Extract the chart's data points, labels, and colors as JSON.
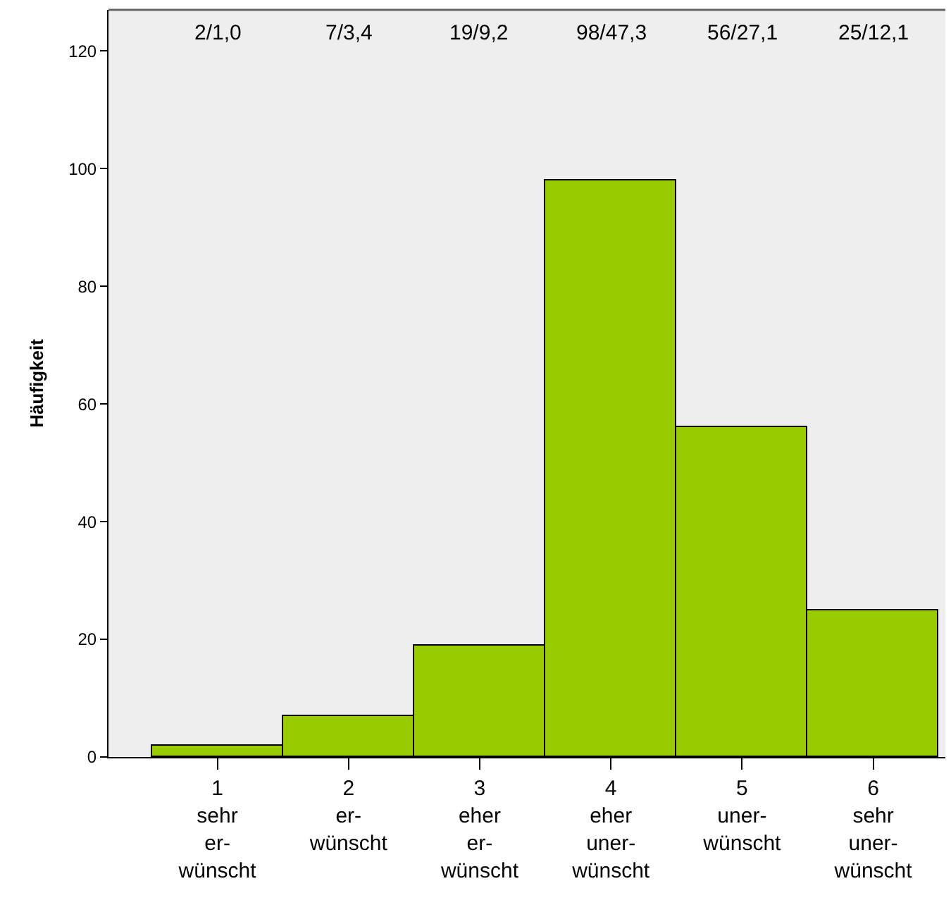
{
  "chart_data": {
    "type": "bar",
    "ylabel": "Häufigkeit",
    "categories": [
      "1\nsehr\ner-\nwünscht",
      "2\ner-\nwünscht",
      "3\neher\ner-\nwünscht",
      "4\neher\nuner-\nwünscht",
      "5\nuner-\nwünscht",
      "6\nsehr\nuner-\nwünscht"
    ],
    "values": [
      2,
      7,
      19,
      98,
      56,
      25
    ],
    "annotations": [
      "2/1,0",
      "7/3,4",
      "19/9,2",
      "98/47,3",
      "56/27,1",
      "25/12,1"
    ],
    "color": "#99cc00",
    "ylim": [
      0,
      127
    ],
    "yticks": [
      0,
      20,
      40,
      60,
      80,
      100,
      120
    ],
    "grid": false,
    "legend": false
  }
}
